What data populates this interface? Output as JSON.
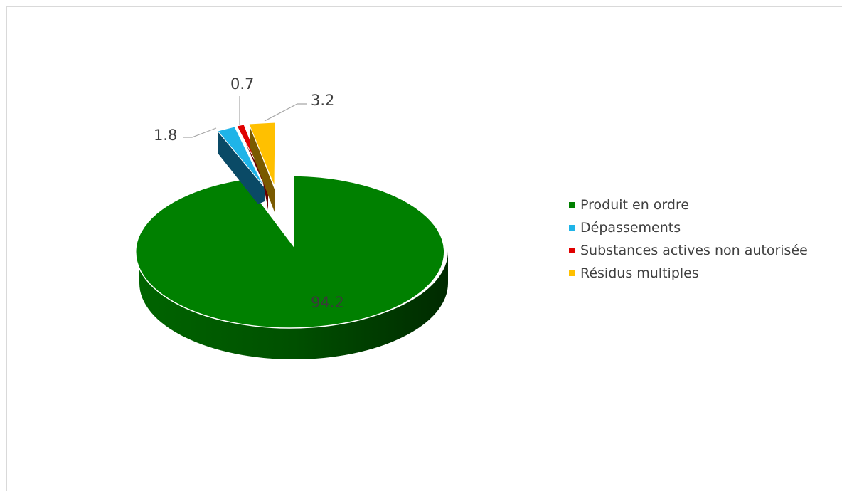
{
  "chart_data": {
    "type": "pie",
    "style": "3d-exploded",
    "categories": [
      "Produit en ordre",
      "Dépassements",
      "Substances actives non autorisée",
      "Résidus multiples"
    ],
    "values": [
      94.2,
      1.8,
      0.7,
      3.2
    ],
    "labels": [
      "94.2",
      "1.8",
      "0.7",
      "3.2"
    ],
    "colors": [
      "#008000",
      "#1FB4E8",
      "#E00000",
      "#FFC000"
    ],
    "side_colors": [
      "#004d00",
      "#0a4a66",
      "#6a0000",
      "#7a5a00"
    ],
    "legend_position": "right",
    "title": ""
  },
  "legend": {
    "items": [
      {
        "label": "Produit en ordre",
        "color": "#008000"
      },
      {
        "label": "Dépassements",
        "color": "#1FB4E8"
      },
      {
        "label": "Substances actives non autorisée",
        "color": "#E00000"
      },
      {
        "label": "Résidus multiples",
        "color": "#FFC000"
      }
    ]
  }
}
